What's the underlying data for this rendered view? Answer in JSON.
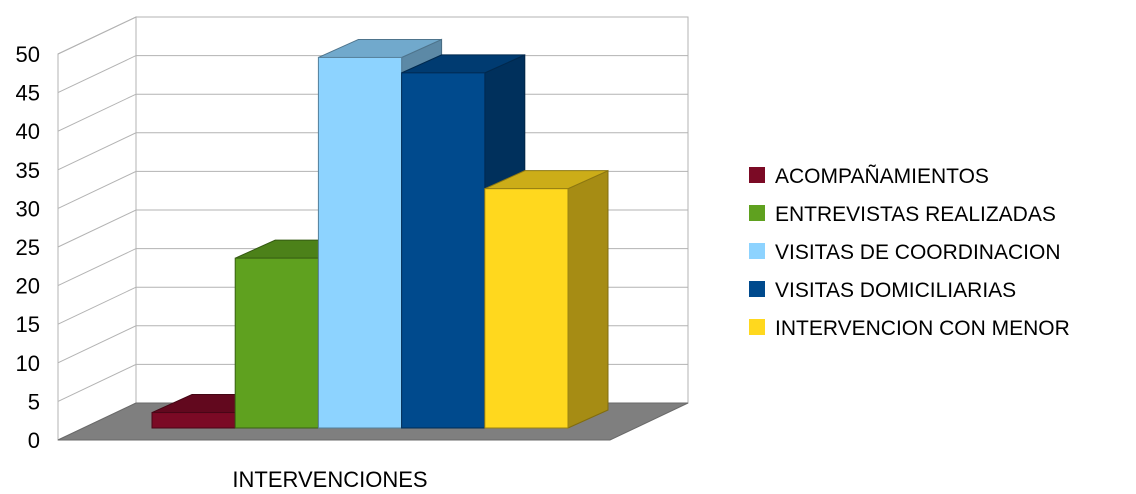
{
  "chart_data": {
    "type": "bar",
    "categories": [
      "INTERVENCIONES"
    ],
    "series": [
      {
        "name": "ACOMPAÑAMIENTOS",
        "values": [
          2
        ],
        "color": "#7b0a25"
      },
      {
        "name": "ENTREVISTAS REALIZADAS",
        "values": [
          22
        ],
        "color": "#5fa11f"
      },
      {
        "name": "VISITAS DE COORDINACION",
        "values": [
          48
        ],
        "color": "#8dd3ff"
      },
      {
        "name": "VISITAS DOMICILIARIAS",
        "values": [
          46
        ],
        "color": "#004a8d"
      },
      {
        "name": "INTERVENCION CON MENOR",
        "values": [
          31
        ],
        "color": "#ffd81e"
      }
    ],
    "y_ticks": [
      "0",
      "5",
      "10",
      "15",
      "20",
      "25",
      "30",
      "35",
      "40",
      "45",
      "50"
    ],
    "ylim": [
      0,
      50
    ],
    "grid": true,
    "legend": "right",
    "style": "3d-clustered-column"
  }
}
